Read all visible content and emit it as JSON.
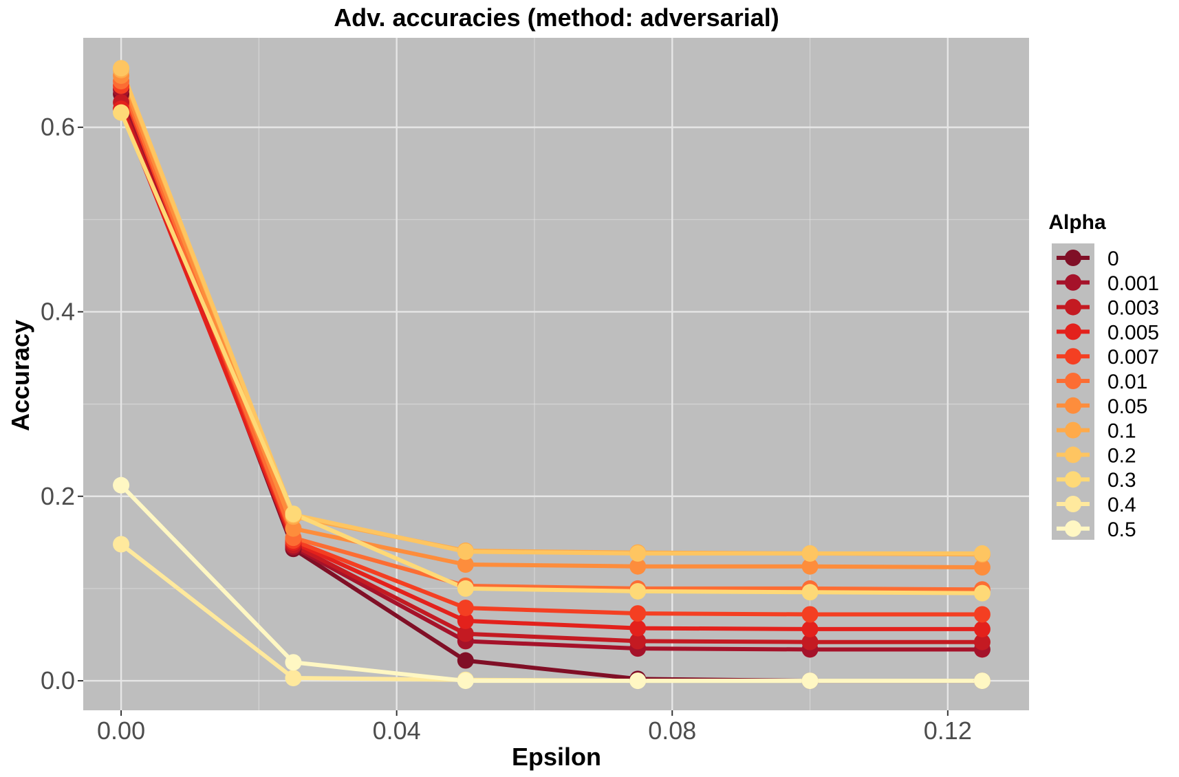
{
  "chart_data": {
    "type": "line",
    "title": "Adv. accuracies (method: adversarial)",
    "xlabel": "Epsilon",
    "ylabel": "Accuracy",
    "xlim": [
      -0.0055,
      0.1318
    ],
    "ylim": [
      -0.032,
      0.697
    ],
    "x_ticks": [
      0.0,
      0.04,
      0.08,
      0.12
    ],
    "x_tick_labels": [
      "0.00",
      "0.04",
      "0.08",
      "0.12"
    ],
    "x_minor_ticks": [
      0.02,
      0.06,
      0.1
    ],
    "y_ticks": [
      0.0,
      0.2,
      0.4,
      0.6
    ],
    "y_tick_labels": [
      "0.0",
      "0.2",
      "0.4",
      "0.6"
    ],
    "y_minor_ticks": [
      0.1,
      0.3,
      0.5
    ],
    "grid": true,
    "panel_background": "#bebebe",
    "grid_color": "#e6e6e6",
    "legend": {
      "title": "Alpha",
      "position": "right"
    },
    "x": [
      0.0,
      0.025,
      0.05,
      0.075,
      0.1,
      0.125
    ],
    "series": [
      {
        "name": "0",
        "color": "#800f26",
        "values": [
          0.636,
          0.143,
          0.022,
          0.002,
          0.0,
          0.0
        ]
      },
      {
        "name": "0.001",
        "color": "#a5122a",
        "values": [
          0.641,
          0.145,
          0.043,
          0.035,
          0.034,
          0.034
        ]
      },
      {
        "name": "0.003",
        "color": "#c41a22",
        "values": [
          0.627,
          0.147,
          0.051,
          0.043,
          0.042,
          0.042
        ]
      },
      {
        "name": "0.005",
        "color": "#e3211c",
        "values": [
          0.62,
          0.15,
          0.065,
          0.057,
          0.056,
          0.056
        ]
      },
      {
        "name": "0.007",
        "color": "#f43f22",
        "values": [
          0.645,
          0.152,
          0.079,
          0.073,
          0.072,
          0.072
        ]
      },
      {
        "name": "0.01",
        "color": "#fc6d33",
        "values": [
          0.65,
          0.155,
          0.103,
          0.1,
          0.1,
          0.099
        ]
      },
      {
        "name": "0.05",
        "color": "#fd8d3c",
        "values": [
          0.656,
          0.165,
          0.126,
          0.124,
          0.124,
          0.123
        ]
      },
      {
        "name": "0.1",
        "color": "#feaa4a",
        "values": [
          0.662,
          0.178,
          0.141,
          0.139,
          0.138,
          0.137
        ]
      },
      {
        "name": "0.2",
        "color": "#fec561",
        "values": [
          0.664,
          0.18,
          0.14,
          0.138,
          0.138,
          0.138
        ]
      },
      {
        "name": "0.3",
        "color": "#fed977",
        "values": [
          0.616,
          0.181,
          0.1,
          0.097,
          0.096,
          0.095
        ]
      },
      {
        "name": "0.4",
        "color": "#ffe99d",
        "values": [
          0.148,
          0.003,
          0.001,
          0.0,
          0.0,
          0.0
        ]
      },
      {
        "name": "0.5",
        "color": "#fff7c3",
        "values": [
          0.212,
          0.02,
          0.0,
          0.0,
          0.0,
          0.0
        ]
      }
    ]
  }
}
